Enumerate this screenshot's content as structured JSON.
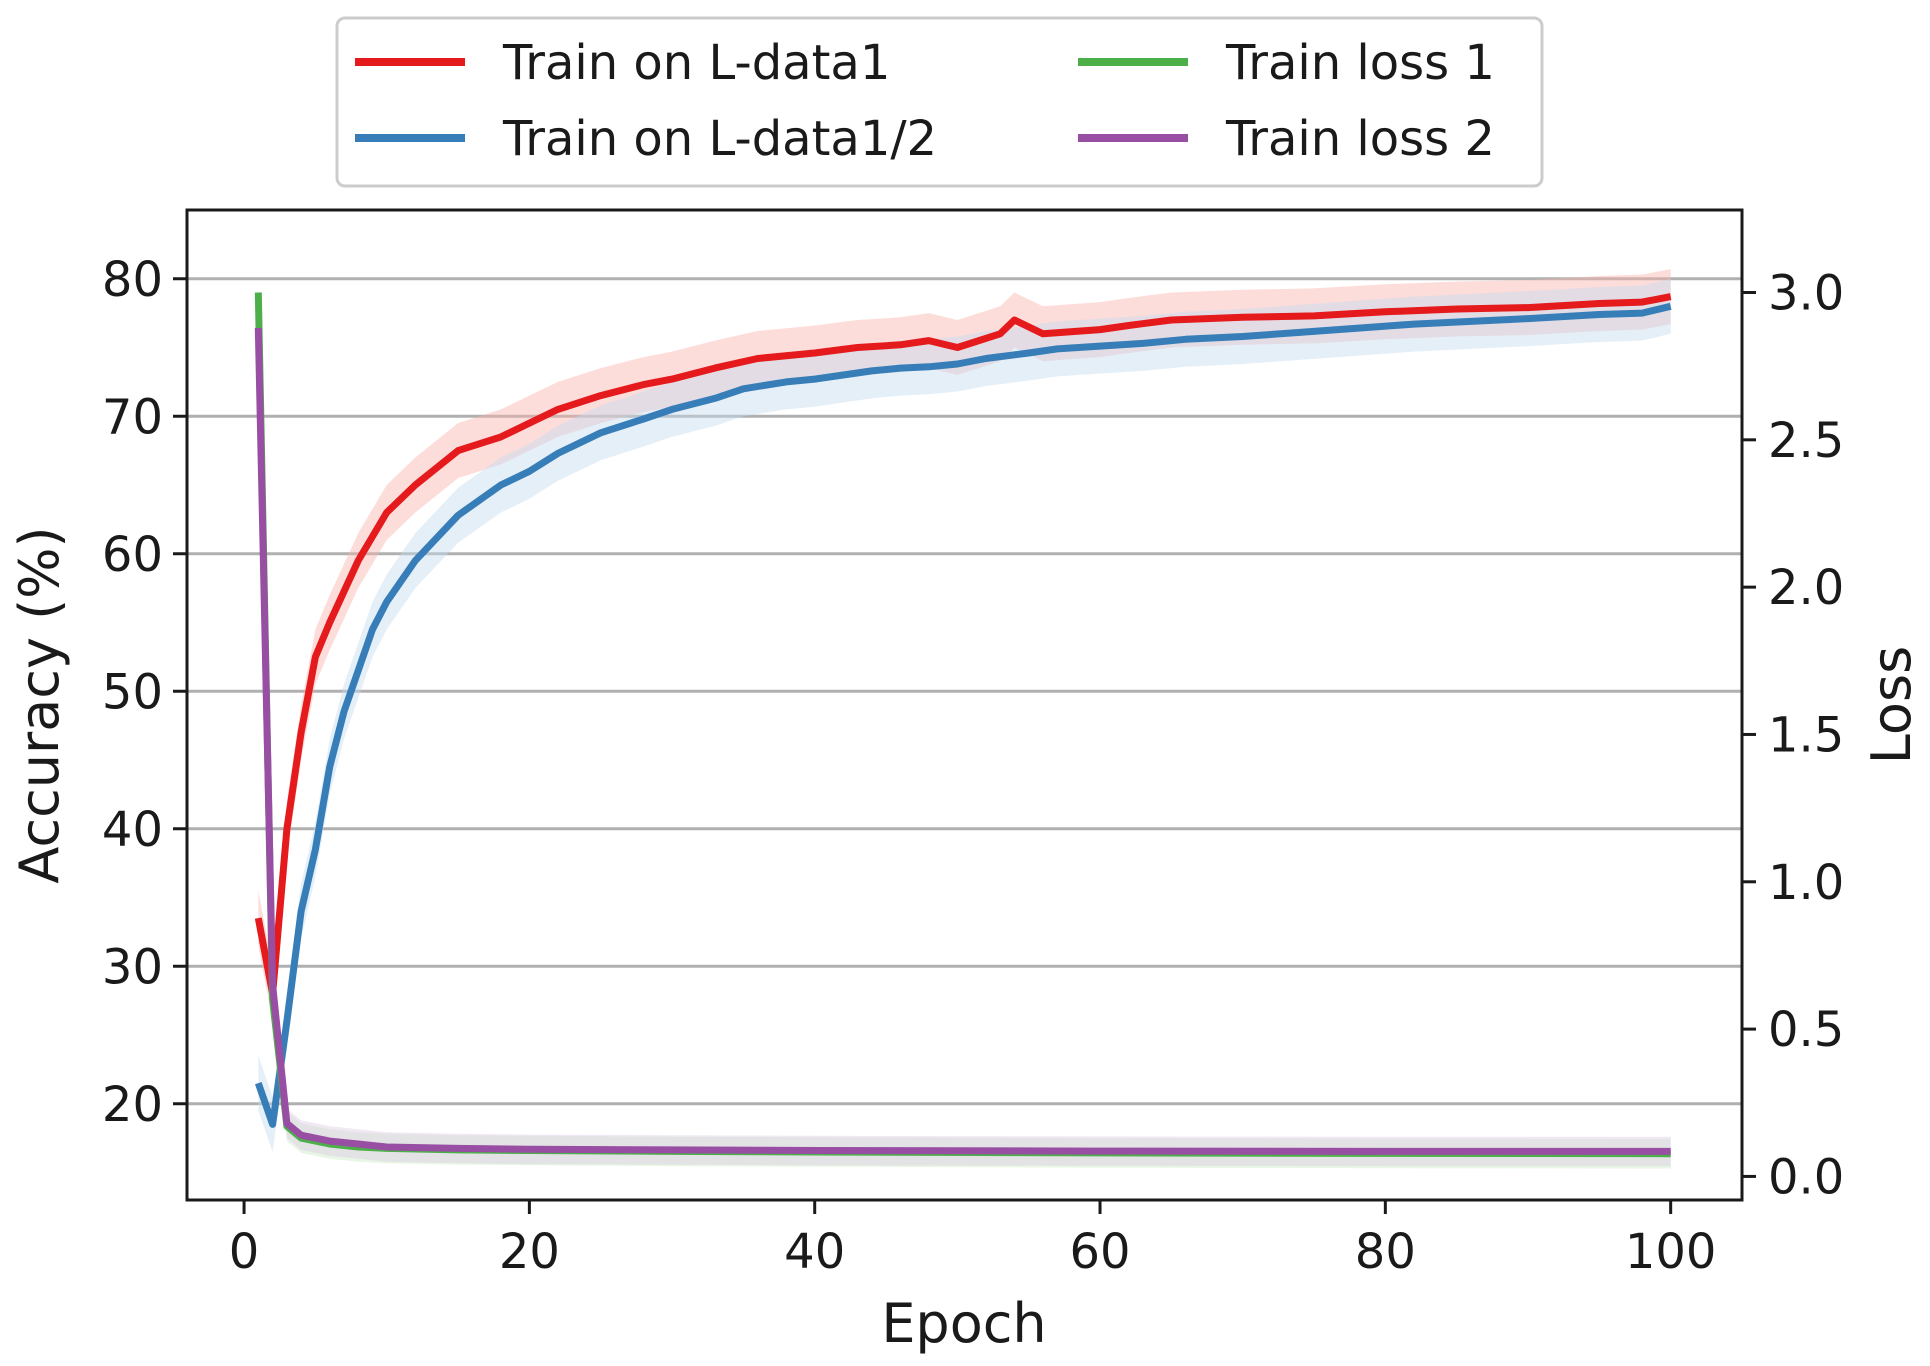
{
  "chart_data": {
    "type": "line",
    "title": "",
    "xlabel": "Epoch",
    "ylabel": "Accuracy (%)",
    "ylabel_right": "Loss",
    "xlim": [
      -4,
      105
    ],
    "ylim": [
      13,
      85
    ],
    "ylim_right": [
      -0.08,
      3.28
    ],
    "xticks": [
      0,
      20,
      40,
      60,
      80,
      100
    ],
    "yticks": [
      20,
      30,
      40,
      50,
      60,
      70,
      80
    ],
    "yticks_right": [
      0.0,
      0.5,
      1.0,
      1.5,
      2.0,
      2.5,
      3.0
    ],
    "ytick_labels_right": [
      "0.0",
      "0.5",
      "1.0",
      "1.5",
      "2.0",
      "2.5",
      "3.0"
    ],
    "grid": "horizontal",
    "legend_position": "top-center (above plot)",
    "series": [
      {
        "name": "Train on L-data1",
        "axis": "left",
        "color": "#e41a1c",
        "band_color": "#fbb4ae",
        "band": 2.0,
        "points": [
          [
            1,
            33.5
          ],
          [
            2,
            28
          ],
          [
            3,
            40
          ],
          [
            4,
            47
          ],
          [
            5,
            52.5
          ],
          [
            6,
            55
          ],
          [
            8,
            59.5
          ],
          [
            10,
            63
          ],
          [
            12,
            65
          ],
          [
            15,
            67.5
          ],
          [
            18,
            68.5
          ],
          [
            20,
            69.5
          ],
          [
            22,
            70.5
          ],
          [
            25,
            71.5
          ],
          [
            28,
            72.3
          ],
          [
            30,
            72.7
          ],
          [
            33,
            73.5
          ],
          [
            36,
            74.2
          ],
          [
            40,
            74.6
          ],
          [
            43,
            75
          ],
          [
            46,
            75.2
          ],
          [
            48,
            75.5
          ],
          [
            50,
            75
          ],
          [
            53,
            76
          ],
          [
            54,
            77
          ],
          [
            56,
            76
          ],
          [
            60,
            76.3
          ],
          [
            62,
            76.6
          ],
          [
            65,
            77
          ],
          [
            70,
            77.2
          ],
          [
            75,
            77.3
          ],
          [
            80,
            77.6
          ],
          [
            85,
            77.8
          ],
          [
            90,
            77.9
          ],
          [
            95,
            78.2
          ],
          [
            98,
            78.3
          ],
          [
            100,
            78.7
          ]
        ]
      },
      {
        "name": "Train on L-data1/2",
        "axis": "left",
        "color": "#377eb8",
        "band_color": "#c6dbef",
        "band": 2.0,
        "points": [
          [
            1,
            21.5
          ],
          [
            2,
            18.5
          ],
          [
            3,
            26
          ],
          [
            4,
            34
          ],
          [
            5,
            38.5
          ],
          [
            6,
            44.5
          ],
          [
            7,
            48.5
          ],
          [
            8,
            51.5
          ],
          [
            9,
            54.5
          ],
          [
            10,
            56.5
          ],
          [
            12,
            59.5
          ],
          [
            15,
            62.8
          ],
          [
            18,
            65
          ],
          [
            20,
            66
          ],
          [
            22,
            67.3
          ],
          [
            25,
            68.8
          ],
          [
            28,
            69.8
          ],
          [
            30,
            70.5
          ],
          [
            33,
            71.3
          ],
          [
            35,
            72
          ],
          [
            38,
            72.5
          ],
          [
            40,
            72.7
          ],
          [
            42,
            73
          ],
          [
            44,
            73.3
          ],
          [
            46,
            73.5
          ],
          [
            48,
            73.6
          ],
          [
            50,
            73.8
          ],
          [
            52,
            74.2
          ],
          [
            55,
            74.6
          ],
          [
            57,
            74.9
          ],
          [
            60,
            75.1
          ],
          [
            63,
            75.3
          ],
          [
            66,
            75.6
          ],
          [
            70,
            75.8
          ],
          [
            74,
            76.1
          ],
          [
            78,
            76.4
          ],
          [
            82,
            76.7
          ],
          [
            86,
            76.9
          ],
          [
            90,
            77.1
          ],
          [
            95,
            77.4
          ],
          [
            98,
            77.5
          ],
          [
            100,
            78
          ]
        ]
      },
      {
        "name": "Train loss 1",
        "axis": "right",
        "color": "#4daf4a",
        "band_color": "#ccebc5",
        "band": 0.05,
        "points": [
          [
            1,
            3.0
          ],
          [
            2,
            0.6
          ],
          [
            3,
            0.17
          ],
          [
            4,
            0.13
          ],
          [
            6,
            0.11
          ],
          [
            8,
            0.1
          ],
          [
            10,
            0.095
          ],
          [
            15,
            0.09
          ],
          [
            20,
            0.088
          ],
          [
            30,
            0.085
          ],
          [
            40,
            0.083
          ],
          [
            60,
            0.08
          ],
          [
            80,
            0.078
          ],
          [
            100,
            0.077
          ]
        ]
      },
      {
        "name": "Train loss 2",
        "axis": "right",
        "color": "#984ea3",
        "band_color": "#decbe4",
        "band": 0.05,
        "points": [
          [
            1,
            2.88
          ],
          [
            2,
            0.65
          ],
          [
            3,
            0.18
          ],
          [
            4,
            0.14
          ],
          [
            6,
            0.12
          ],
          [
            8,
            0.11
          ],
          [
            10,
            0.1
          ],
          [
            15,
            0.095
          ],
          [
            20,
            0.092
          ],
          [
            30,
            0.09
          ],
          [
            40,
            0.088
          ],
          [
            60,
            0.086
          ],
          [
            80,
            0.085
          ],
          [
            100,
            0.085
          ]
        ]
      }
    ]
  }
}
